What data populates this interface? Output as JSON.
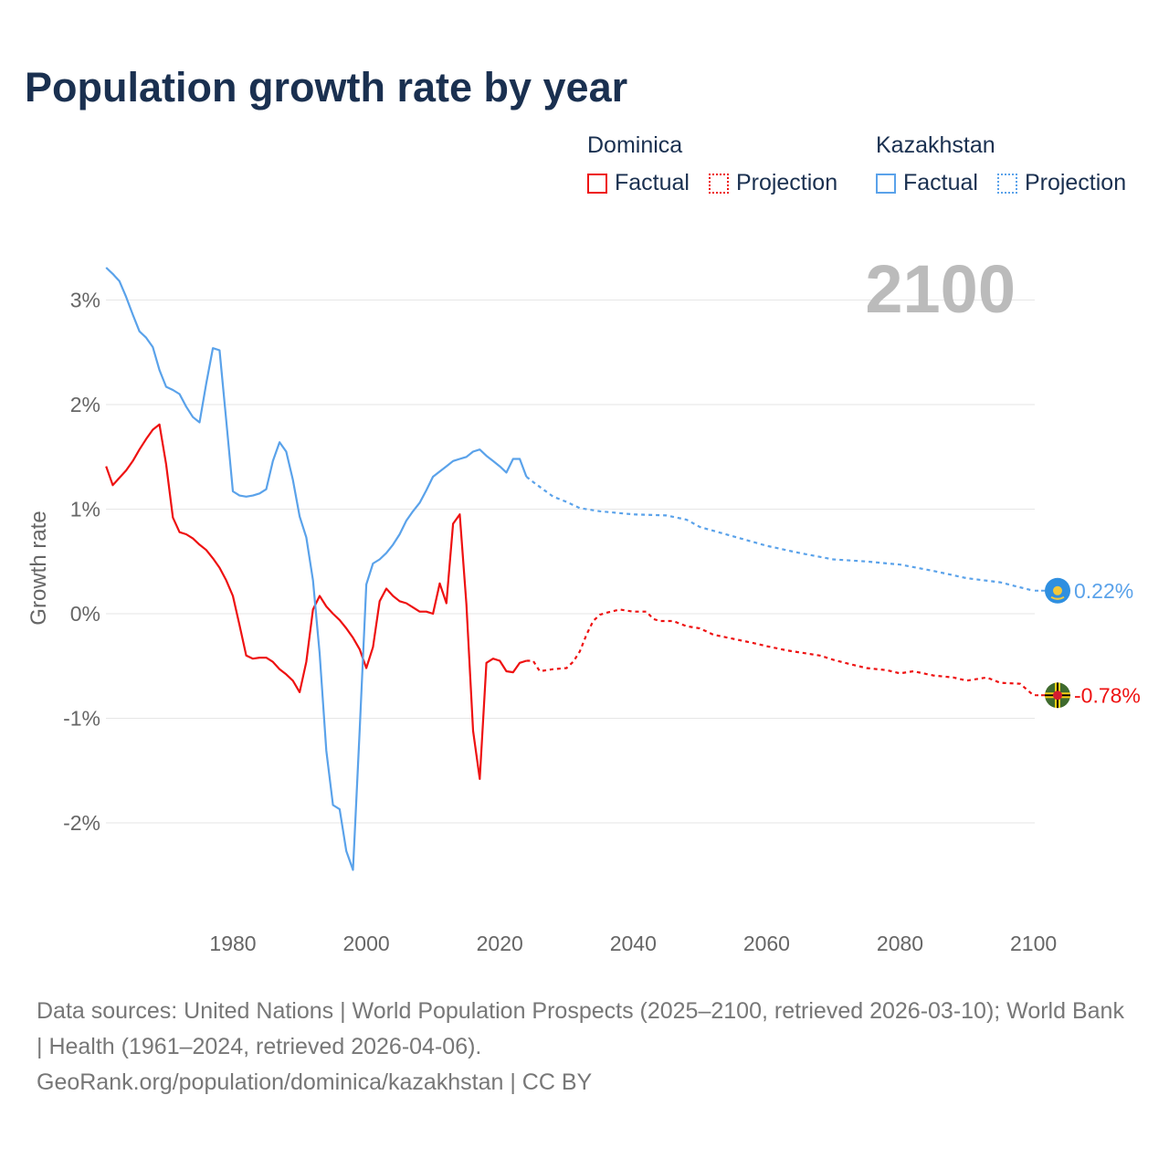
{
  "title": "Population growth rate by year",
  "legend": {
    "groups": [
      {
        "name": "Dominica",
        "factual": "Factual",
        "projection": "Projection",
        "color": "#ee1111"
      },
      {
        "name": "Kazakhstan",
        "factual": "Factual",
        "projection": "Projection",
        "color": "#5aa2ea"
      }
    ]
  },
  "year_label": "2100",
  "footer": {
    "sources": "Data sources: United Nations | World Population Prospects (2025–2100, retrieved 2026-03-10); World Bank | Health (1961–2024, retrieved 2026-04-06).",
    "credit": "GeoRank.org/population/dominica/kazakhstan | CC BY"
  },
  "chart_data": {
    "type": "line",
    "title": "Population growth rate by year",
    "xlabel": "",
    "ylabel": "Growth rate",
    "xlim": [
      1961,
      2100
    ],
    "ylim": [
      -2.9,
      3.4
    ],
    "x_ticks": [
      1980,
      2000,
      2020,
      2040,
      2060,
      2080,
      2100
    ],
    "x_tick_labels": [
      "1980",
      "2000",
      "2020",
      "2040",
      "2060",
      "2080",
      "2100"
    ],
    "y_ticks": [
      3,
      2,
      1,
      0,
      -1,
      -2
    ],
    "y_tick_labels": [
      "3%",
      "2%",
      "1%",
      "0%",
      "-1%",
      "-2%"
    ],
    "grid": true,
    "legend_position": "top-right",
    "series": [
      {
        "name": "Dominica",
        "color": "#ee1111",
        "end_label": "-0.78%",
        "factual": {
          "x": [
            1961,
            1962,
            1963,
            1964,
            1965,
            1966,
            1967,
            1968,
            1969,
            1970,
            1971,
            1972,
            1973,
            1974,
            1975,
            1976,
            1977,
            1978,
            1979,
            1980,
            1981,
            1982,
            1983,
            1984,
            1985,
            1986,
            1987,
            1988,
            1989,
            1990,
            1991,
            1992,
            1993,
            1994,
            1995,
            1996,
            1997,
            1998,
            1999,
            2000,
            2001,
            2002,
            2003,
            2004,
            2005,
            2006,
            2007,
            2008,
            2009,
            2010,
            2011,
            2012,
            2013,
            2014,
            2015,
            2016,
            2017,
            2018,
            2019,
            2020,
            2021,
            2022,
            2023,
            2024
          ],
          "y": [
            1.41,
            1.23,
            1.3,
            1.37,
            1.46,
            1.57,
            1.67,
            1.76,
            1.81,
            1.43,
            0.92,
            0.78,
            0.76,
            0.72,
            0.66,
            0.61,
            0.53,
            0.44,
            0.32,
            0.17,
            -0.11,
            -0.4,
            -0.43,
            -0.42,
            -0.42,
            -0.46,
            -0.53,
            -0.58,
            -0.64,
            -0.75,
            -0.46,
            0.04,
            0.17,
            0.07,
            0.0,
            -0.06,
            -0.14,
            -0.23,
            -0.34,
            -0.52,
            -0.32,
            0.12,
            0.24,
            0.17,
            0.12,
            0.1,
            0.06,
            0.02,
            0.02,
            0.0,
            0.29,
            0.1,
            0.86,
            0.95,
            0.09,
            -1.12,
            -1.58,
            -0.47,
            -0.43,
            -0.45,
            -0.55,
            -0.56,
            -0.47,
            -0.45
          ]
        },
        "projection": {
          "x": [
            2024,
            2025,
            2026,
            2028,
            2030,
            2031,
            2032,
            2033,
            2034,
            2035,
            2036,
            2038,
            2040,
            2042,
            2043,
            2044,
            2046,
            2048,
            2050,
            2052,
            2055,
            2058,
            2060,
            2063,
            2065,
            2068,
            2070,
            2073,
            2075,
            2078,
            2080,
            2082,
            2085,
            2088,
            2090,
            2093,
            2095,
            2098,
            2100
          ],
          "y": [
            -0.45,
            -0.45,
            -0.55,
            -0.53,
            -0.52,
            -0.46,
            -0.36,
            -0.2,
            -0.07,
            -0.01,
            0.01,
            0.04,
            0.02,
            0.02,
            -0.05,
            -0.07,
            -0.07,
            -0.12,
            -0.14,
            -0.2,
            -0.24,
            -0.28,
            -0.31,
            -0.35,
            -0.37,
            -0.4,
            -0.44,
            -0.49,
            -0.52,
            -0.54,
            -0.57,
            -0.55,
            -0.59,
            -0.61,
            -0.64,
            -0.61,
            -0.66,
            -0.67,
            -0.78
          ]
        }
      },
      {
        "name": "Kazakhstan",
        "color": "#5aa2ea",
        "end_label": "0.22%",
        "factual": {
          "x": [
            1961,
            1962,
            1963,
            1964,
            1965,
            1966,
            1967,
            1968,
            1969,
            1970,
            1971,
            1972,
            1973,
            1974,
            1975,
            1976,
            1977,
            1978,
            1979,
            1980,
            1981,
            1982,
            1983,
            1984,
            1985,
            1986,
            1987,
            1988,
            1989,
            1990,
            1991,
            1992,
            1993,
            1994,
            1995,
            1996,
            1997,
            1998,
            1999,
            2000,
            2001,
            2002,
            2003,
            2004,
            2005,
            2006,
            2007,
            2008,
            2009,
            2010,
            2011,
            2012,
            2013,
            2014,
            2015,
            2016,
            2017,
            2018,
            2019,
            2020,
            2021,
            2022,
            2023,
            2024
          ],
          "y": [
            3.31,
            3.25,
            3.18,
            3.03,
            2.86,
            2.7,
            2.64,
            2.55,
            2.33,
            2.17,
            2.14,
            2.1,
            1.98,
            1.88,
            1.83,
            2.2,
            2.54,
            2.52,
            1.85,
            1.17,
            1.13,
            1.12,
            1.13,
            1.15,
            1.19,
            1.46,
            1.64,
            1.55,
            1.28,
            0.93,
            0.73,
            0.32,
            -0.38,
            -1.31,
            -1.83,
            -1.87,
            -2.27,
            -2.45,
            -1.12,
            0.28,
            0.48,
            0.52,
            0.58,
            0.66,
            0.76,
            0.89,
            0.98,
            1.06,
            1.18,
            1.31,
            1.36,
            1.41,
            1.46,
            1.48,
            1.5,
            1.55,
            1.57,
            1.51,
            1.46,
            1.41,
            1.35,
            1.48,
            1.48,
            1.31
          ]
        },
        "projection": {
          "x": [
            2024,
            2025,
            2028,
            2030,
            2032,
            2035,
            2040,
            2045,
            2048,
            2050,
            2055,
            2060,
            2065,
            2070,
            2075,
            2080,
            2085,
            2090,
            2095,
            2100
          ],
          "y": [
            1.31,
            1.26,
            1.12,
            1.07,
            1.01,
            0.98,
            0.95,
            0.94,
            0.9,
            0.83,
            0.74,
            0.65,
            0.58,
            0.52,
            0.5,
            0.47,
            0.41,
            0.34,
            0.3,
            0.22
          ]
        }
      }
    ]
  }
}
